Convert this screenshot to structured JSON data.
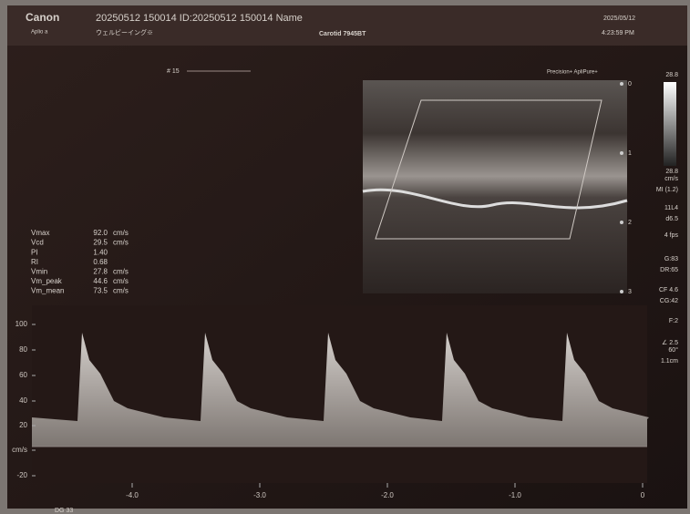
{
  "header": {
    "brand": "Canon",
    "model": "Aplio a",
    "patient": "20250512 150014 ID:20250512 150014 Name",
    "facility": "ウェルビーイング※",
    "preset": "Carotid 7945BT",
    "date": "2025/05/12",
    "time": "4:23:59 PM"
  },
  "frame": "# 15",
  "modes": "Precision+ ApliPure+",
  "depth_scale": [
    "0",
    "1",
    "2",
    "3"
  ],
  "right_panel": [
    "28.8",
    "28.8",
    "cm/s",
    "MI (1.2)",
    "11L4",
    "d6.5",
    "4 fps",
    "G:83",
    "DR:65",
    "CF 4.6",
    "CG:42",
    "F:2",
    "∠ 2.5",
    "60°",
    "1.1cm"
  ],
  "measurements": [
    {
      "name": "Vmax",
      "value": "92.0",
      "unit": "cm/s"
    },
    {
      "name": "Vcd",
      "value": "29.5",
      "unit": "cm/s"
    },
    {
      "name": "PI",
      "value": "1.40"
    },
    {
      "name": "RI",
      "value": "0.68"
    },
    {
      "name": "Vmin",
      "value": "27.8",
      "unit": "cm/s"
    },
    {
      "name": "Vm_peak",
      "value": "44.6",
      "unit": "cm/s"
    },
    {
      "name": "Vm_mean",
      "value": "73.5",
      "unit": "cm/s"
    }
  ],
  "velocity_axis": {
    "labels": [
      "100",
      "80",
      "60",
      "40",
      "20",
      "cm/s",
      "-20"
    ]
  },
  "time_axis": {
    "labels": [
      "-4.0",
      "-3.0",
      "-2.0",
      "-1.0",
      "0"
    ]
  },
  "footer": "DG 33"
}
